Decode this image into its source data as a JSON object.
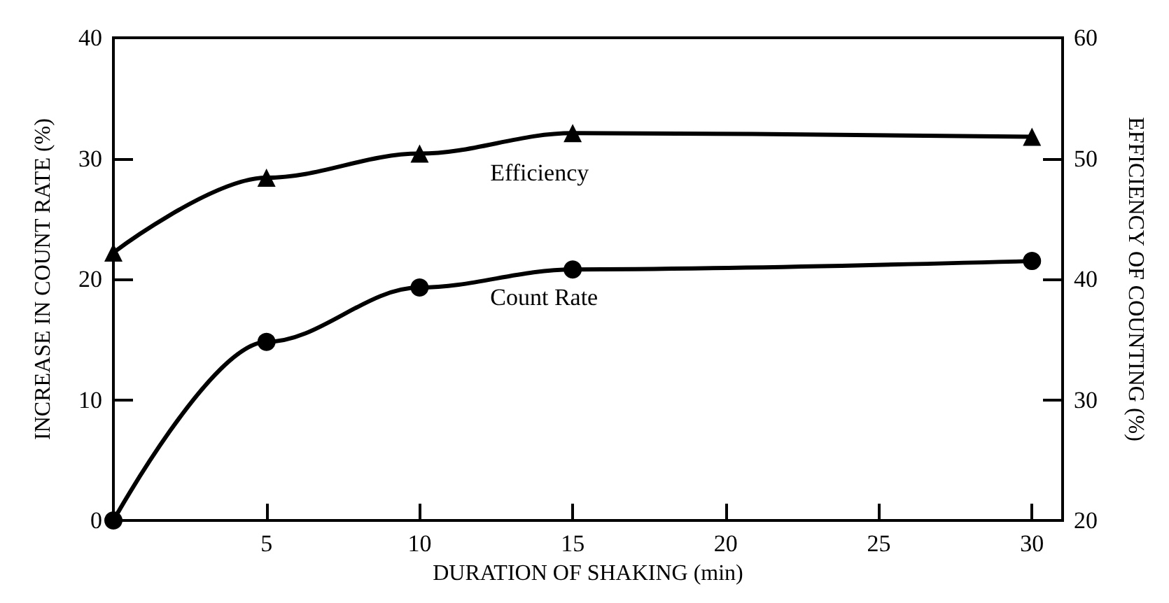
{
  "chart_data": {
    "type": "line",
    "xlabel": "DURATION OF SHAKING (min)",
    "ylabel": "INCREASE IN COUNT RATE (%)",
    "y2label": "EFFICIENCY OF COUNTING (%)",
    "series": [
      {
        "name": "Count Rate",
        "color": "#000000",
        "marker": "circle",
        "x": [
          0,
          5,
          10,
          15,
          30
        ],
        "values": [
          0,
          14.8,
          19.3,
          20.8,
          21.5
        ]
      },
      {
        "name": "Efficiency",
        "color": "#000000",
        "marker": "triangle",
        "axis": "y2",
        "x": [
          0,
          5,
          10,
          15,
          30
        ],
        "values": [
          42.2,
          48.4,
          50.4,
          52.1,
          51.8
        ]
      }
    ],
    "xlim": [
      0,
      31
    ],
    "xticks": [
      5,
      10,
      15,
      20,
      25,
      30
    ],
    "ylim": [
      0,
      40
    ],
    "yticks": [
      0,
      10,
      20,
      30,
      40
    ],
    "y2lim": [
      20,
      60
    ],
    "y2ticks": [
      20,
      30,
      40,
      50,
      60
    ],
    "grid": false,
    "legend": false,
    "line_style": "solid"
  }
}
